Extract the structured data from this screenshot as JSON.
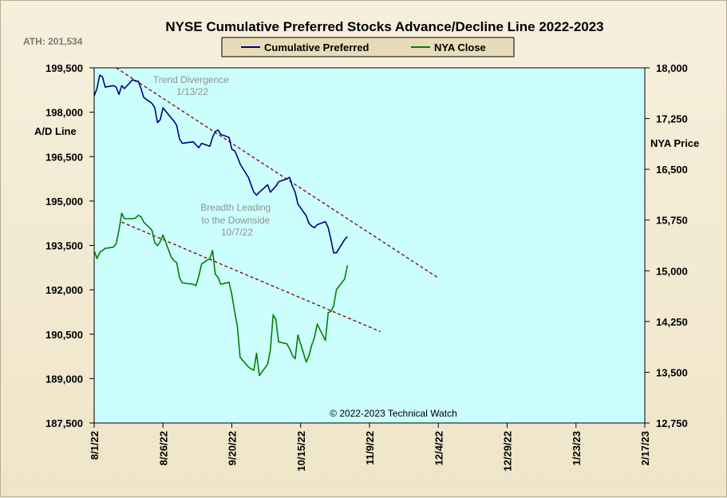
{
  "chart_data": {
    "type": "line",
    "title": "NYSE Cumulative  Preferred Stocks Advance/Decline  Line  2022-2023",
    "ath_label": "ATH: 201,534",
    "left_axis_label": "A/D Line",
    "right_axis_label": "NYA Price",
    "copyright": "© 2022-2023  Technical  Watch",
    "left_axis": {
      "min": 187500,
      "max": 199500,
      "ticks": [
        "199,500",
        "198,000",
        "196,500",
        "195,000",
        "193,500",
        "192,000",
        "190,500",
        "189,000",
        "187,500"
      ]
    },
    "right_axis": {
      "min": 12750,
      "max": 18000,
      "ticks": [
        "18,000",
        "17,250",
        "16,500",
        "15,750",
        "15,000",
        "14,250",
        "13,500",
        "12,750"
      ]
    },
    "x_axis": {
      "start": "2022-08-01",
      "end": "2023-02-17",
      "ticks": [
        "8/1/22",
        "8/26/22",
        "9/20/22",
        "10/15/22",
        "11/9/22",
        "12/4/22",
        "12/29/22",
        "1/23/23",
        "2/17/23"
      ]
    },
    "legend": {
      "placement": "top-center"
    },
    "colors": {
      "plot_bg": "#ccfefe",
      "ad_line": "#000080",
      "nya": "#008000",
      "trend": "#800000",
      "annotation": "#909090"
    },
    "series": [
      {
        "name": "Cumulative Preferred",
        "axis": "left",
        "x": [
          "2022-08-01",
          "2022-08-02",
          "2022-08-03",
          "2022-08-04",
          "2022-08-05",
          "2022-08-08",
          "2022-08-09",
          "2022-08-10",
          "2022-08-11",
          "2022-08-12",
          "2022-08-15",
          "2022-08-16",
          "2022-08-17",
          "2022-08-18",
          "2022-08-19",
          "2022-08-22",
          "2022-08-23",
          "2022-08-24",
          "2022-08-25",
          "2022-08-26",
          "2022-08-29",
          "2022-08-30",
          "2022-08-31",
          "2022-09-01",
          "2022-09-02",
          "2022-09-06",
          "2022-09-07",
          "2022-09-08",
          "2022-09-09",
          "2022-09-12",
          "2022-09-13",
          "2022-09-14",
          "2022-09-15",
          "2022-09-16",
          "2022-09-19",
          "2022-09-20",
          "2022-09-21",
          "2022-09-22",
          "2022-09-23",
          "2022-09-26",
          "2022-09-27",
          "2022-09-28",
          "2022-09-29",
          "2022-09-30",
          "2022-10-03",
          "2022-10-04",
          "2022-10-05",
          "2022-10-06",
          "2022-10-07",
          "2022-10-10",
          "2022-10-11",
          "2022-10-12",
          "2022-10-13",
          "2022-10-14",
          "2022-10-17",
          "2022-10-18",
          "2022-10-19",
          "2022-10-20",
          "2022-10-21",
          "2022-10-24",
          "2022-10-25",
          "2022-10-26",
          "2022-10-27",
          "2022-10-28",
          "2022-10-31",
          "2022-11-01"
        ],
        "values": [
          198550,
          198800,
          199250,
          199200,
          198850,
          198900,
          198850,
          198600,
          198900,
          198800,
          199100,
          199050,
          199050,
          198800,
          198500,
          198300,
          198150,
          197650,
          197750,
          198150,
          197800,
          197700,
          197550,
          197100,
          196950,
          197000,
          196900,
          196800,
          196950,
          196850,
          197150,
          197350,
          197400,
          197250,
          197150,
          196750,
          196700,
          196500,
          196250,
          195800,
          195550,
          195300,
          195200,
          195300,
          195550,
          195300,
          195400,
          195500,
          195650,
          195750,
          195800,
          195500,
          195300,
          194900,
          194500,
          194250,
          194150,
          194100,
          194200,
          194300,
          194100,
          193700,
          193250,
          193250,
          193700,
          193800
        ]
      },
      {
        "name": "NYA Close",
        "axis": "right",
        "x": [
          "2022-08-01",
          "2022-08-02",
          "2022-08-03",
          "2022-08-04",
          "2022-08-05",
          "2022-08-08",
          "2022-08-09",
          "2022-08-10",
          "2022-08-11",
          "2022-08-12",
          "2022-08-15",
          "2022-08-16",
          "2022-08-17",
          "2022-08-18",
          "2022-08-19",
          "2022-08-22",
          "2022-08-23",
          "2022-08-24",
          "2022-08-25",
          "2022-08-26",
          "2022-08-29",
          "2022-08-30",
          "2022-08-31",
          "2022-09-01",
          "2022-09-02",
          "2022-09-06",
          "2022-09-07",
          "2022-09-08",
          "2022-09-09",
          "2022-09-12",
          "2022-09-13",
          "2022-09-14",
          "2022-09-15",
          "2022-09-16",
          "2022-09-19",
          "2022-09-20",
          "2022-09-21",
          "2022-09-22",
          "2022-09-23",
          "2022-09-26",
          "2022-09-27",
          "2022-09-28",
          "2022-09-29",
          "2022-09-30",
          "2022-10-03",
          "2022-10-04",
          "2022-10-05",
          "2022-10-06",
          "2022-10-07",
          "2022-10-10",
          "2022-10-11",
          "2022-10-12",
          "2022-10-13",
          "2022-10-14",
          "2022-10-17",
          "2022-10-18",
          "2022-10-19",
          "2022-10-20",
          "2022-10-21",
          "2022-10-24",
          "2022-10-25",
          "2022-10-26",
          "2022-10-27",
          "2022-10-28",
          "2022-10-31",
          "2022-11-01"
        ],
        "values": [
          15300,
          15180,
          15270,
          15300,
          15330,
          15350,
          15400,
          15600,
          15850,
          15770,
          15770,
          15780,
          15820,
          15800,
          15720,
          15600,
          15420,
          15370,
          15430,
          15530,
          15200,
          15150,
          15120,
          14900,
          14820,
          14800,
          14780,
          14920,
          15100,
          15180,
          15300,
          14950,
          14900,
          14800,
          14830,
          14650,
          14400,
          14180,
          13720,
          13580,
          13550,
          13530,
          13780,
          13450,
          13620,
          13830,
          14350,
          14280,
          13950,
          13920,
          13850,
          13750,
          13700,
          14050,
          13650,
          13740,
          13900,
          14010,
          14210,
          13970,
          14380,
          14400,
          14480,
          14720,
          14880,
          15080
        ]
      }
    ],
    "trendlines": [
      {
        "from": {
          "x": "2022-08-09",
          "y": 199500,
          "axis": "left"
        },
        "to": {
          "x": "2022-12-04",
          "y": 192400,
          "axis": "left"
        }
      },
      {
        "from": {
          "x": "2022-08-11",
          "y": 15720,
          "axis": "right"
        },
        "to": {
          "x": "2022-11-13",
          "y": 14100,
          "axis": "right"
        }
      }
    ],
    "annotations": [
      {
        "lines": [
          "Trend  Divergence",
          "1/13/22"
        ]
      },
      {
        "lines": [
          "Breadth Leading",
          "to the Downside",
          "10/7/22"
        ]
      }
    ]
  }
}
